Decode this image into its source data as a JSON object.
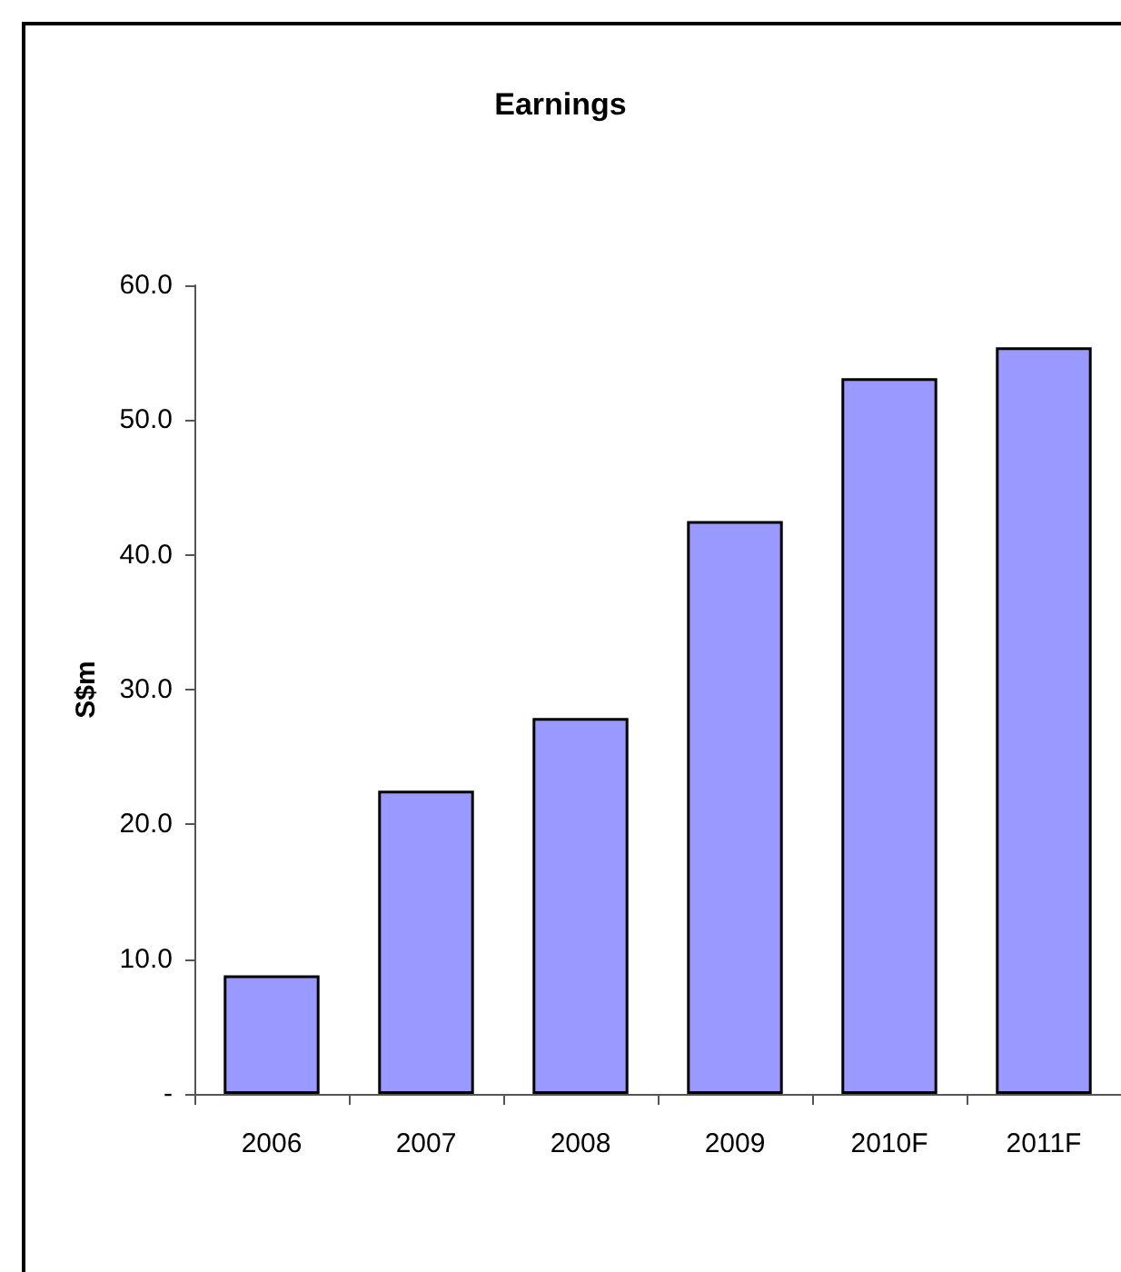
{
  "chart_data": {
    "type": "bar",
    "title": "Earnings",
    "ylabel": "S$m",
    "categories": [
      "2006",
      "2007",
      "2008",
      "2009",
      "2010F",
      "2011F"
    ],
    "values": [
      8.8,
      22.5,
      27.9,
      42.5,
      53.1,
      55.4
    ],
    "color": "#9999ff",
    "ylim": [
      0,
      60
    ],
    "yticks": [
      {
        "value": 0,
        "label": "-"
      },
      {
        "value": 10,
        "label": "10.0"
      },
      {
        "value": 20,
        "label": "20.0"
      },
      {
        "value": 30,
        "label": "30.0"
      },
      {
        "value": 40,
        "label": "40.0"
      },
      {
        "value": 50,
        "label": "50.0"
      },
      {
        "value": 60,
        "label": "60.0"
      }
    ],
    "grid": false
  }
}
